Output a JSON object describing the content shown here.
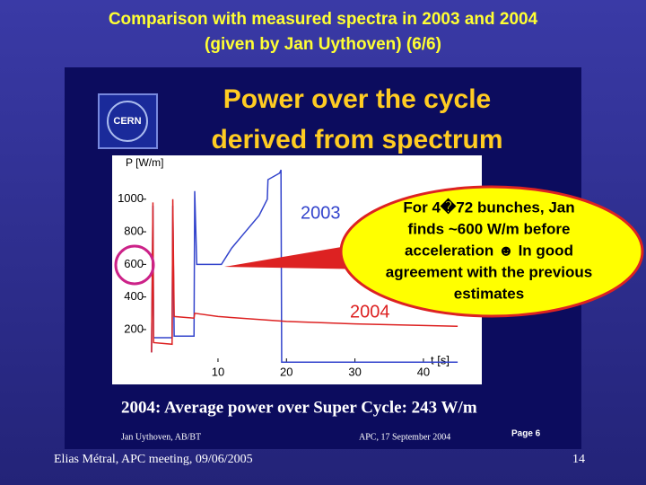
{
  "header": {
    "title": [
      "Comparison with measured spectra in 2003 and 2004",
      "(given by Jan Uythoven) (6/6)"
    ]
  },
  "slide": {
    "logo": "CERN",
    "heading": [
      "Power over the cycle",
      "derived from spectrum"
    ],
    "summary": "2004: Average power over Super Cycle: 243 W/m",
    "author": "Jan Uythoven, AB/BT",
    "event": "APC, 17 September 2004",
    "page": "Page 6"
  },
  "chart_data": {
    "type": "line",
    "y_label": "P [W/m]",
    "x_label": "t [s]",
    "xlim": [
      -1,
      48
    ],
    "ylim": [
      -120,
      1200
    ],
    "xticks": [
      10,
      20,
      30,
      40
    ],
    "yticks": [
      200,
      400,
      600,
      800,
      1000
    ],
    "series": [
      {
        "name": "2003",
        "color": "#3344cc",
        "x": [
          0.3,
          0.5,
          0.6,
          3.3,
          3.4,
          3.6,
          6.5,
          6.6,
          6.9,
          10.5,
          12,
          14,
          16,
          17.2,
          17.3,
          19,
          19.2,
          19.3,
          45
        ],
        "values": [
          60,
          960,
          150,
          150,
          960,
          160,
          160,
          1050,
          600,
          600,
          700,
          800,
          900,
          1000,
          1120,
          1160,
          1180,
          0,
          0
        ]
      },
      {
        "name": "2004",
        "color": "#dd2222",
        "x": [
          0.3,
          0.5,
          0.6,
          3.3,
          3.4,
          3.6,
          6.5,
          6.6,
          10,
          20,
          30,
          40,
          45
        ],
        "values": [
          60,
          980,
          120,
          110,
          1000,
          280,
          270,
          300,
          280,
          250,
          235,
          225,
          220
        ]
      }
    ]
  },
  "callout": {
    "lines": [
      "For 4�72 bunches, Jan",
      "finds ~600 W/m before",
      "acceleration ☻ In good",
      "agreement with the previous",
      "estimates"
    ]
  },
  "footer": {
    "author": "Elias Métral, APC meeting, 09/06/2005",
    "page": "14"
  }
}
